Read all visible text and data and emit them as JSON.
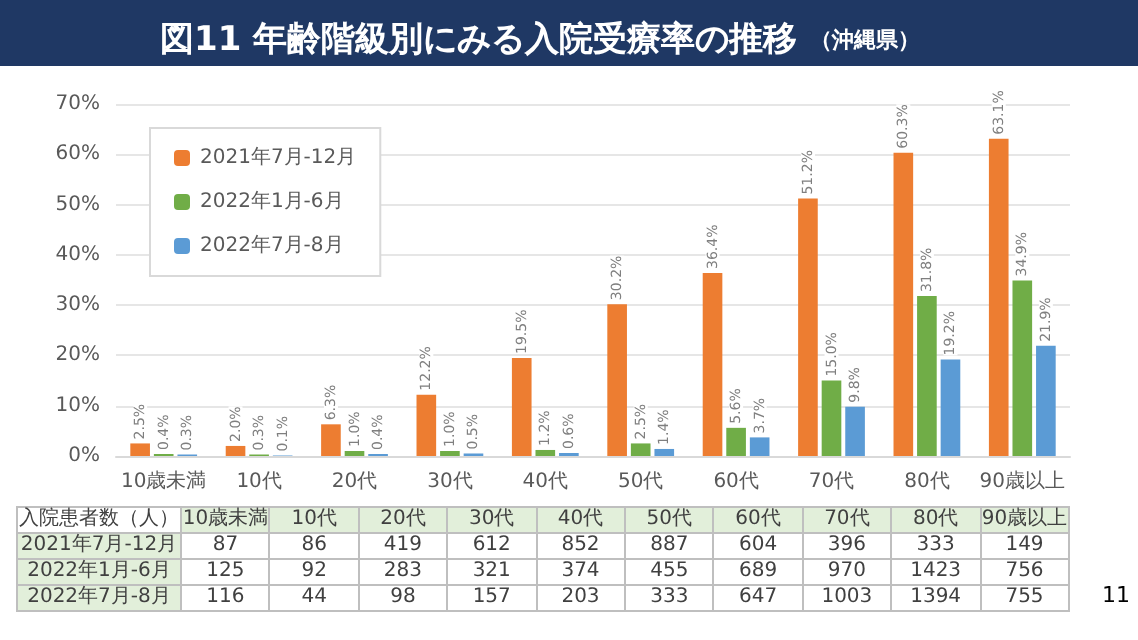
{
  "chart_data": [
    {
      "type": "bar",
      "title": "図11 年齢階級別にみる入院受療率の推移",
      "subtitle": "（沖縄県）",
      "categories": [
        "10歳未満",
        "10代",
        "20代",
        "30代",
        "40代",
        "50代",
        "60代",
        "70代",
        "80代",
        "90歳以上"
      ],
      "series": [
        {
          "name": "2021年7月-12月",
          "color": "#ed7d31",
          "values": [
            2.5,
            2.0,
            6.3,
            12.2,
            19.5,
            30.2,
            36.4,
            51.2,
            60.3,
            63.1
          ],
          "value_labels": [
            "2.5%",
            "2.0%",
            "6.3%",
            "12.2%",
            "19.5%",
            "30.2%",
            "36.4%",
            "51.2%",
            "60.3%",
            "63.1%"
          ]
        },
        {
          "name": "2022年1月-6月",
          "color": "#70ad47",
          "values": [
            0.4,
            0.3,
            1.0,
            1.0,
            1.2,
            2.5,
            5.6,
            15.0,
            31.8,
            34.9
          ],
          "value_labels": [
            "0.4%",
            "0.3%",
            "1.0%",
            "1.0%",
            "1.2%",
            "2.5%",
            "5.6%",
            "15.0%",
            "31.8%",
            "34.9%"
          ]
        },
        {
          "name": "2022年7月-8月",
          "color": "#5b9bd5",
          "values": [
            0.3,
            0.1,
            0.4,
            0.5,
            0.6,
            1.4,
            3.7,
            9.8,
            19.2,
            21.9
          ],
          "value_labels": [
            "0.3%",
            "0.1%",
            "0.4%",
            "0.5%",
            "0.6%",
            "1.4%",
            "3.7%",
            "9.8%",
            "19.2%",
            "21.9%"
          ]
        }
      ],
      "ylim": [
        0,
        70
      ],
      "yticks": [
        {
          "value": 0,
          "label": "0%"
        },
        {
          "value": 10,
          "label": "10%"
        },
        {
          "value": 20,
          "label": "20%"
        },
        {
          "value": 30,
          "label": "30%"
        },
        {
          "value": 40,
          "label": "40%"
        },
        {
          "value": 50,
          "label": "50%"
        },
        {
          "value": 60,
          "label": "60%"
        },
        {
          "value": 70,
          "label": "70%"
        }
      ],
      "grid": "y",
      "legend": "top left",
      "annotations": [
        "11"
      ]
    },
    {
      "type": "heatmap",
      "title": "入院患者数（人）",
      "categories": [
        "10歳未満",
        "10代",
        "20代",
        "30代",
        "40代",
        "50代",
        "60代",
        "70代",
        "80代",
        "90歳以上"
      ],
      "y_categories": [
        "2021年7月-12月",
        "2022年1月-6月",
        "2022年7月-8月"
      ],
      "cells": [
        [
          87,
          86,
          419,
          612,
          852,
          887,
          604,
          396,
          333,
          149
        ],
        [
          125,
          92,
          283,
          321,
          374,
          455,
          689,
          970,
          1423,
          756
        ],
        [
          116,
          44,
          98,
          157,
          203,
          333,
          647,
          1003,
          1394,
          755
        ]
      ],
      "data_labels": true
    }
  ]
}
